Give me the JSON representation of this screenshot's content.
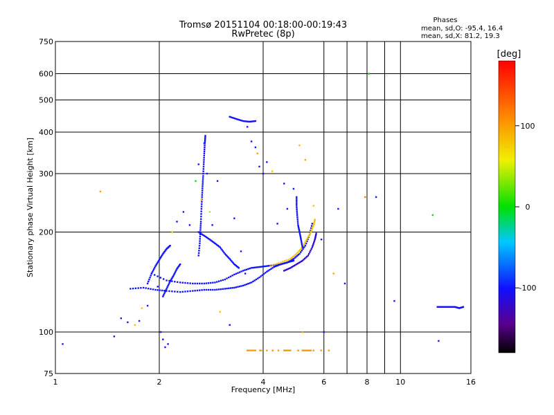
{
  "chart_data": {
    "type": "scatter",
    "title": "Tromsø 20151104 00:18:00-00:19:43",
    "subtitle": "RwPretec (8p)",
    "xlabel": "Frequency [MHz]",
    "ylabel": "Stationary phase Virtual Height [km]",
    "x_scale": "log",
    "y_scale": "log",
    "xlim": [
      1,
      16
    ],
    "ylim": [
      75,
      750
    ],
    "x_ticks": [
      {
        "value": 1,
        "label": "1"
      },
      {
        "value": 2,
        "label": "2"
      },
      {
        "value": 4,
        "label": "4"
      },
      {
        "value": 6,
        "label": "6"
      },
      {
        "value": 7,
        "label": ""
      },
      {
        "value": 8,
        "label": "8"
      },
      {
        "value": 9,
        "label": ""
      },
      {
        "value": 10,
        "label": "10"
      },
      {
        "value": 16,
        "label": "16"
      }
    ],
    "y_ticks": [
      {
        "value": 75,
        "label": "75"
      },
      {
        "value": 100,
        "label": "100"
      },
      {
        "value": 200,
        "label": "200"
      },
      {
        "value": 300,
        "label": "300"
      },
      {
        "value": 400,
        "label": "400"
      },
      {
        "value": 500,
        "label": "500"
      },
      {
        "value": 600,
        "label": "600"
      },
      {
        "value": 750,
        "label": "750"
      }
    ],
    "grid": true,
    "stats": {
      "header": "Phases",
      "line_o": "mean, sd,O: -95.4, 16.4",
      "line_x": "mean, sd,X:  81.2, 19.3"
    },
    "colorbar": {
      "label": "[deg]",
      "range": [
        -180,
        180
      ],
      "ticks": [
        {
          "value": 100,
          "label": "100"
        },
        {
          "value": 0,
          "label": "0"
        },
        {
          "value": -100,
          "label": "-100"
        }
      ]
    },
    "traces": [
      {
        "name": "",
        "phase": -100,
        "points": [
          [
            1.65,
            135
          ],
          [
            1.8,
            136
          ],
          [
            1.95,
            134
          ],
          [
            2.1,
            133
          ],
          [
            2.3,
            132
          ],
          [
            2.5,
            133
          ],
          [
            2.7,
            134
          ],
          [
            2.9,
            134
          ],
          [
            3.1,
            135
          ],
          [
            3.3,
            136
          ],
          [
            3.5,
            138
          ],
          [
            3.7,
            141
          ],
          [
            3.9,
            146
          ],
          [
            4.1,
            152
          ],
          [
            4.3,
            157
          ],
          [
            4.5,
            160
          ],
          [
            4.7,
            162
          ],
          [
            4.9,
            164
          ]
        ]
      },
      {
        "name": "",
        "phase": -100,
        "points": [
          [
            1.9,
            150
          ],
          [
            2.1,
            143
          ],
          [
            2.3,
            141
          ],
          [
            2.5,
            140
          ],
          [
            2.7,
            140
          ],
          [
            2.9,
            141
          ],
          [
            3.1,
            144
          ],
          [
            3.3,
            149
          ],
          [
            3.5,
            153
          ],
          [
            3.7,
            156
          ],
          [
            3.9,
            157
          ],
          [
            4.1,
            158
          ],
          [
            4.3,
            159
          ],
          [
            4.5,
            160
          ],
          [
            4.7,
            162
          ],
          [
            4.9,
            166
          ],
          [
            5.1,
            172
          ],
          [
            5.3,
            182
          ],
          [
            5.45,
            196
          ],
          [
            5.55,
            212
          ]
        ]
      },
      {
        "name": "",
        "phase": -120,
        "points": [
          [
            4.6,
            153
          ],
          [
            4.8,
            156
          ],
          [
            5.0,
            160
          ],
          [
            5.2,
            164
          ],
          [
            5.4,
            170
          ],
          [
            5.55,
            180
          ],
          [
            5.65,
            190
          ],
          [
            5.7,
            198
          ]
        ]
      },
      {
        "name": "",
        "phase": 80,
        "points": [
          [
            4.2,
            158
          ],
          [
            4.5,
            162
          ],
          [
            4.8,
            166
          ],
          [
            5.0,
            172
          ],
          [
            5.2,
            180
          ],
          [
            5.35,
            190
          ],
          [
            5.5,
            200
          ],
          [
            5.6,
            210
          ],
          [
            5.65,
            218
          ]
        ]
      },
      {
        "name": "",
        "phase": -100,
        "points": [
          [
            2.6,
            170
          ],
          [
            2.62,
            185
          ],
          [
            2.63,
            200
          ],
          [
            2.64,
            215
          ],
          [
            2.65,
            235
          ],
          [
            2.66,
            255
          ],
          [
            2.67,
            275
          ],
          [
            2.68,
            295
          ],
          [
            2.69,
            320
          ],
          [
            2.7,
            345
          ],
          [
            2.71,
            370
          ],
          [
            2.72,
            390
          ]
        ]
      },
      {
        "name": "",
        "phase": -100,
        "points": [
          [
            1.85,
            140
          ],
          [
            1.9,
            150
          ],
          [
            1.95,
            158
          ],
          [
            2.0,
            165
          ],
          [
            2.05,
            172
          ],
          [
            2.1,
            178
          ],
          [
            2.15,
            182
          ]
        ]
      },
      {
        "name": "",
        "phase": -100,
        "points": [
          [
            2.05,
            128
          ],
          [
            2.1,
            135
          ],
          [
            2.15,
            142
          ],
          [
            2.2,
            148
          ],
          [
            2.25,
            155
          ],
          [
            2.3,
            160
          ]
        ]
      },
      {
        "name": "",
        "phase": -100,
        "points": [
          [
            2.6,
            200
          ],
          [
            2.7,
            195
          ],
          [
            2.8,
            190
          ],
          [
            2.9,
            185
          ],
          [
            3.0,
            180
          ],
          [
            3.1,
            172
          ],
          [
            3.2,
            166
          ],
          [
            3.3,
            160
          ],
          [
            3.4,
            156
          ]
        ]
      },
      {
        "name": "",
        "phase": -100,
        "points": [
          [
            3.2,
            445
          ],
          [
            3.35,
            438
          ],
          [
            3.5,
            432
          ],
          [
            3.65,
            430
          ],
          [
            3.8,
            432
          ]
        ]
      },
      {
        "name": "",
        "phase": -100,
        "points": [
          [
            5.0,
            255
          ],
          [
            5.0,
            240
          ],
          [
            5.02,
            225
          ],
          [
            5.05,
            210
          ],
          [
            5.1,
            200
          ],
          [
            5.15,
            190
          ],
          [
            5.2,
            180
          ]
        ]
      },
      {
        "name": "",
        "phase": -100,
        "points": [
          [
            12.8,
            119
          ],
          [
            13.2,
            119
          ],
          [
            13.6,
            119
          ],
          [
            14.0,
            119
          ],
          [
            14.4,
            119
          ],
          [
            14.8,
            118
          ],
          [
            15.2,
            119
          ]
        ]
      },
      {
        "name": "",
        "phase": 100,
        "points": [
          [
            5.2,
            88
          ],
          [
            5.3,
            88
          ],
          [
            5.4,
            88
          ],
          [
            5.5,
            88
          ],
          [
            3.6,
            88
          ],
          [
            3.8,
            88
          ],
          [
            4.6,
            88
          ],
          [
            4.8,
            88
          ],
          [
            6.2,
            88
          ]
        ]
      }
    ],
    "scatter_points": [
      [
        1.05,
        92,
        -100
      ],
      [
        1.35,
        265,
        100
      ],
      [
        1.48,
        97,
        -100
      ],
      [
        1.55,
        110,
        -100
      ],
      [
        1.62,
        107,
        -100
      ],
      [
        1.7,
        105,
        80
      ],
      [
        1.75,
        108,
        -100
      ],
      [
        1.78,
        118,
        80
      ],
      [
        1.85,
        120,
        -100
      ],
      [
        1.98,
        137,
        -100
      ],
      [
        2.02,
        100,
        -100
      ],
      [
        2.05,
        95,
        -100
      ],
      [
        2.08,
        90,
        -100
      ],
      [
        2.12,
        92,
        -100
      ],
      [
        2.18,
        200,
        80
      ],
      [
        2.25,
        215,
        -100
      ],
      [
        2.35,
        230,
        -100
      ],
      [
        2.45,
        210,
        -100
      ],
      [
        2.55,
        285,
        0
      ],
      [
        2.6,
        320,
        -100
      ],
      [
        2.65,
        250,
        80
      ],
      [
        2.7,
        370,
        -100
      ],
      [
        2.75,
        300,
        -100
      ],
      [
        2.8,
        230,
        40
      ],
      [
        2.85,
        210,
        -100
      ],
      [
        2.95,
        285,
        -100
      ],
      [
        3.0,
        115,
        80
      ],
      [
        3.2,
        105,
        -100
      ],
      [
        3.3,
        220,
        -100
      ],
      [
        3.45,
        175,
        -100
      ],
      [
        3.55,
        150,
        -100
      ],
      [
        3.6,
        415,
        -100
      ],
      [
        3.7,
        375,
        -100
      ],
      [
        3.8,
        360,
        -100
      ],
      [
        3.85,
        345,
        100
      ],
      [
        3.9,
        315,
        -100
      ],
      [
        4.0,
        300,
        -100
      ],
      [
        4.1,
        325,
        -100
      ],
      [
        4.25,
        305,
        80
      ],
      [
        4.4,
        212,
        -100
      ],
      [
        4.6,
        280,
        -100
      ],
      [
        4.7,
        235,
        -100
      ],
      [
        4.9,
        270,
        -100
      ],
      [
        5.1,
        365,
        80
      ],
      [
        5.3,
        330,
        100
      ],
      [
        5.2,
        100,
        100
      ],
      [
        5.6,
        240,
        80
      ],
      [
        5.9,
        190,
        -120
      ],
      [
        6.0,
        100,
        -100
      ],
      [
        6.4,
        150,
        100
      ],
      [
        6.6,
        235,
        -100
      ],
      [
        6.9,
        140,
        -100
      ],
      [
        7.9,
        255,
        120
      ],
      [
        8.1,
        600,
        0
      ],
      [
        8.5,
        255,
        -100
      ],
      [
        9.6,
        124,
        -100
      ],
      [
        12.4,
        225,
        0
      ],
      [
        12.9,
        94,
        -100
      ]
    ]
  }
}
